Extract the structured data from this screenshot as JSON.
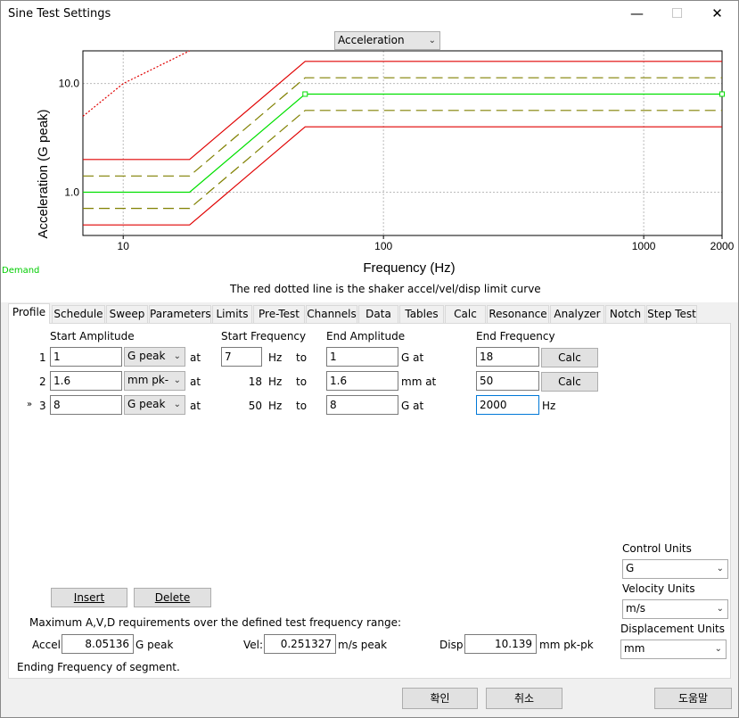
{
  "window": {
    "title": "Sine Test Settings",
    "minimize": "—",
    "maximize": "☐",
    "close": "✕"
  },
  "chart": {
    "view_select": "Acceleration",
    "ylabel": "Acceleration (G peak)",
    "xlabel": "Frequency (Hz)",
    "y_ticks": [
      "10.0",
      "1.0"
    ],
    "x_ticks": [
      "10",
      "100",
      "1000",
      "2000"
    ],
    "note": "The red dotted line is the shaker accel/vel/disp limit curve",
    "demand_label": "Demand"
  },
  "chart_data": {
    "type": "line",
    "title": "",
    "xlabel": "Frequency (Hz)",
    "ylabel": "Acceleration (G peak)",
    "x_scale": "log",
    "y_scale": "log",
    "xlim": [
      7,
      2000
    ],
    "ylim": [
      0.4,
      20
    ],
    "grid": true,
    "series": [
      {
        "color": "#e00000",
        "style": "dotted",
        "x": [
          7,
          10,
          14.5,
          18
        ],
        "y": [
          5,
          10,
          15.5,
          20
        ]
      },
      {
        "color": "#e00000",
        "style": "solid",
        "x": [
          7,
          18,
          50,
          2000
        ],
        "y": [
          2,
          2,
          16,
          16
        ]
      },
      {
        "color": "#808000",
        "style": "dashed",
        "x": [
          7,
          18,
          50,
          2000
        ],
        "y": [
          1.41,
          1.41,
          11.3,
          11.3
        ]
      },
      {
        "color": "#00e000",
        "style": "solid",
        "x": [
          7,
          18,
          50,
          2000
        ],
        "y": [
          1,
          1,
          8,
          8
        ]
      },
      {
        "color": "#808000",
        "style": "dashed",
        "x": [
          7,
          18,
          50,
          2000
        ],
        "y": [
          0.71,
          0.71,
          5.66,
          5.66
        ]
      },
      {
        "color": "#e00000",
        "style": "solid",
        "x": [
          7,
          18,
          50,
          2000
        ],
        "y": [
          0.5,
          0.5,
          4,
          4
        ]
      }
    ]
  },
  "tabs": [
    "Profile",
    "Schedule",
    "Sweep",
    "Parameters",
    "Limits",
    "Pre-Test",
    "Channels",
    "Data",
    "Tables",
    "Calc",
    "Resonance",
    "Analyzer",
    "Notch",
    "Step Test"
  ],
  "profile": {
    "headers": {
      "start_amp": "Start Amplitude",
      "start_freq": "Start Frequency",
      "end_amp": "End Amplitude",
      "end_freq": "End Frequency"
    },
    "rows": [
      {
        "num": "1",
        "marker": "",
        "start_amp": "1",
        "unit": "G peak",
        "at1": "at",
        "start_freq": "7",
        "hz": "Hz",
        "to": "to",
        "end_amp": "1",
        "end_unit": "G at",
        "end_freq": "18",
        "calc": "Calc"
      },
      {
        "num": "2",
        "marker": "",
        "start_amp": "1.6",
        "unit": "mm pk-",
        "at1": "at",
        "start_freq": "18",
        "hz": "Hz",
        "to": "to",
        "end_amp": "1.6",
        "end_unit": "mm at",
        "end_freq": "50",
        "calc": "Calc"
      },
      {
        "num": "3",
        "marker": "»",
        "start_amp": "8",
        "unit": "G peak",
        "at1": "at",
        "start_freq": "50",
        "hz": "Hz",
        "to": "to",
        "end_amp": "8",
        "end_unit": "G at",
        "end_freq": "2000",
        "hz_end": "Hz"
      }
    ],
    "insert": "Insert",
    "delete": "Delete",
    "max_label": "Maximum A,V,D requirements over the defined test frequency range:",
    "accel_label": "Accel:",
    "accel_value": "8.05136",
    "accel_unit": "G peak",
    "vel_label": "Vel:",
    "vel_value": "0.251327",
    "vel_unit": "m/s peak",
    "disp_label": "Disp:",
    "disp_value": "10.139",
    "disp_unit": "mm pk-pk",
    "status": "Ending Frequency of segment.",
    "control_units_label": "Control Units",
    "control_units": "G",
    "velocity_units_label": "Velocity Units",
    "velocity_units": "m/s",
    "displacement_units_label": "Displacement Units",
    "displacement_units": "mm"
  },
  "footer": {
    "ok": "확인",
    "cancel": "취소",
    "help": "도움말"
  }
}
